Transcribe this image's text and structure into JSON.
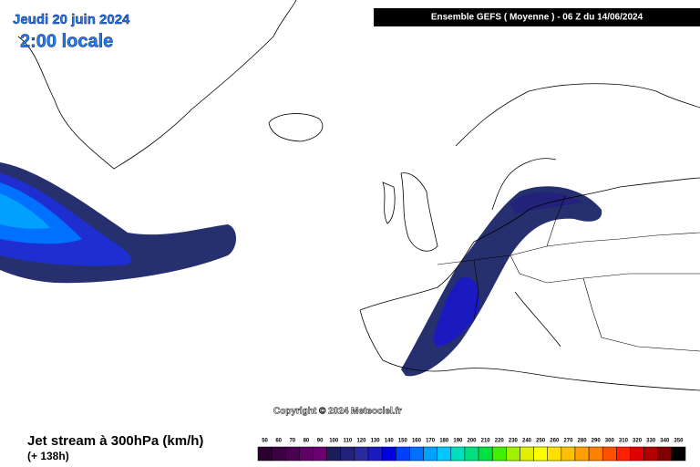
{
  "header": {
    "date": "Jeudi 20 juin 2024",
    "time": "2:00 locale",
    "run": "Ensemble GEFS  ( Moyenne )  -  06 Z du 14/06/2024"
  },
  "copyright": "Copyright © 2024 Meteociel.fr",
  "footer": {
    "title": "Jet stream à 300hPa (km/h)",
    "lead": "(+ 138h)"
  },
  "legend": {
    "labels": [
      50,
      60,
      70,
      80,
      90,
      100,
      110,
      120,
      130,
      140,
      150,
      160,
      170,
      180,
      190,
      200,
      210,
      220,
      230,
      240,
      250,
      260,
      270,
      280,
      290,
      300,
      310,
      320,
      330,
      340,
      350
    ],
    "colors": [
      "#2a0030",
      "#3a0042",
      "#4c0054",
      "#5e0066",
      "#6c0070",
      "#1c1c5c",
      "#22227a",
      "#2a2aa0",
      "#1a1ac0",
      "#0000e0",
      "#0040ff",
      "#0070ff",
      "#00a0ff",
      "#00c8ff",
      "#00e0c0",
      "#00e080",
      "#00e040",
      "#40f000",
      "#a0f000",
      "#e0f000",
      "#ffff00",
      "#ffe000",
      "#ffc000",
      "#ffa000",
      "#ff8000",
      "#ff5000",
      "#ff2000",
      "#e00000",
      "#b00000",
      "#800000",
      "#000000"
    ]
  }
}
